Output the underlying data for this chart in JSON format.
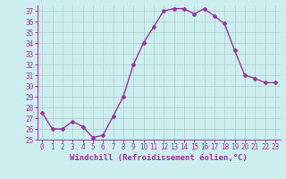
{
  "x": [
    0,
    1,
    2,
    3,
    4,
    5,
    6,
    7,
    8,
    9,
    10,
    11,
    12,
    13,
    14,
    15,
    16,
    17,
    18,
    19,
    20,
    21,
    22,
    23
  ],
  "y": [
    27.5,
    26.0,
    26.0,
    26.7,
    26.2,
    25.2,
    25.4,
    27.2,
    29.0,
    32.0,
    34.0,
    35.5,
    37.0,
    37.2,
    37.2,
    36.7,
    37.2,
    36.5,
    35.8,
    33.3,
    31.0,
    30.7,
    30.3,
    30.3
  ],
  "line_color": "#993399",
  "marker": "D",
  "marker_size": 2,
  "bg_color": "#cceeee",
  "grid_color": "#aacccc",
  "xlabel": "Windchill (Refroidissement éolien,°C)",
  "xlabel_color": "#993399",
  "tick_color": "#993399",
  "spine_color": "#993399",
  "ylim": [
    25,
    37.5
  ],
  "yticks": [
    25,
    26,
    27,
    28,
    29,
    30,
    31,
    32,
    33,
    34,
    35,
    36,
    37
  ],
  "xlim": [
    -0.5,
    23.5
  ],
  "xticks": [
    0,
    1,
    2,
    3,
    4,
    5,
    6,
    7,
    8,
    9,
    10,
    11,
    12,
    13,
    14,
    15,
    16,
    17,
    18,
    19,
    20,
    21,
    22,
    23
  ],
  "tick_fontsize": 5.5,
  "xlabel_fontsize": 6.5,
  "linewidth": 1.0
}
